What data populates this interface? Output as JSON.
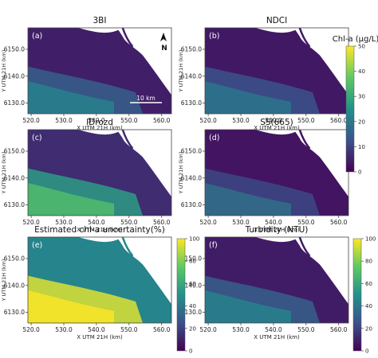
{
  "chart_data": {
    "type": "heatmap",
    "panels": [
      {
        "letter": "(a)",
        "title": "3BI",
        "metric": "chla",
        "level": 0.15,
        "plume": 0.3
      },
      {
        "letter": "(b)",
        "title": "NDCI",
        "metric": "chla",
        "level": 0.12,
        "plume": 0.25
      },
      {
        "letter": "(c)",
        "title": "IDrozd",
        "metric": "chla",
        "level": 0.22,
        "plume": 0.55
      },
      {
        "letter": "(d)",
        "title": "SS(665)",
        "metric": "chla",
        "level": 0.1,
        "plume": 0.22
      },
      {
        "letter": "(e)",
        "title": "Estimated chl-a uncertainty(%)",
        "metric": "uncertainty",
        "level": 0.75,
        "plume": 0.95
      },
      {
        "letter": "(f)",
        "title": "Turbidity (NTU)",
        "metric": "turbidity",
        "level": 0.14,
        "plume": 0.3
      }
    ],
    "xlabel": "X UTM 21H (km)",
    "ylabel": "Y UTM 21H (km)",
    "xticks": [
      "520.0",
      "530.0",
      "540.0",
      "550.0",
      "560.0"
    ],
    "yticks": [
      "6130.0",
      "6140.0",
      "6150.0"
    ],
    "xlim": [
      519.0,
      563.0
    ],
    "ylim": [
      6126.0,
      6158.0
    ],
    "north_label": "N",
    "scale_bar_label": "10 km",
    "colorbars": {
      "chla": {
        "label": "Chl-a (µg/L)",
        "ticks": [
          "0",
          "10",
          "20",
          "30",
          "40",
          "50"
        ],
        "range": [
          0,
          50
        ]
      },
      "uncertainty": {
        "label": "",
        "ticks": [
          "0",
          "20",
          "40",
          "60",
          "80",
          "100"
        ],
        "range": [
          0,
          100
        ]
      },
      "turbidity": {
        "label": "",
        "ticks": [
          "0",
          "20",
          "40",
          "60",
          "80",
          "100"
        ],
        "range": [
          0,
          100
        ]
      }
    },
    "colormap": "viridis",
    "land_color": "#ffffff"
  }
}
